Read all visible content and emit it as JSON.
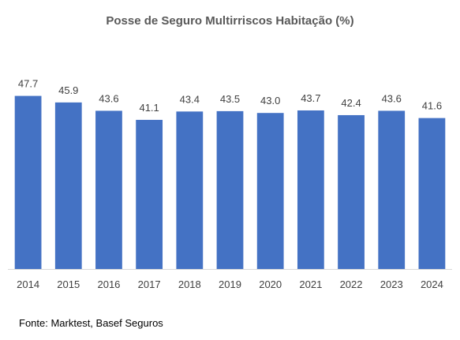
{
  "chart_data": {
    "type": "bar",
    "title": "Posse de Seguro Multirriscos Habitação (%)",
    "categories": [
      "2014",
      "2015",
      "2016",
      "2017",
      "2018",
      "2019",
      "2020",
      "2021",
      "2022",
      "2023",
      "2024"
    ],
    "values": [
      47.7,
      45.9,
      43.6,
      41.1,
      43.4,
      43.5,
      43.0,
      43.7,
      42.4,
      43.6,
      41.6
    ],
    "value_labels": [
      "47.7",
      "45.9",
      "43.6",
      "41.1",
      "43.4",
      "43.5",
      "43.0",
      "43.7",
      "42.4",
      "43.6",
      "41.6"
    ],
    "xlabel": "",
    "ylabel": "",
    "ylim": [
      0,
      50
    ],
    "grid": false,
    "legend": "none",
    "bar_color": "#4472C4",
    "source": "Fonte: Marktest, Basef Seguros"
  }
}
